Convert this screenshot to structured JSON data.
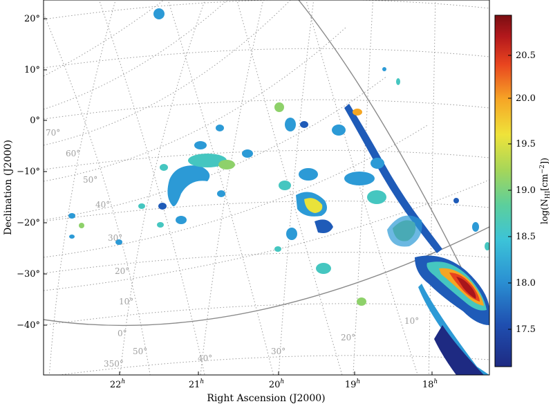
{
  "chart_data": {
    "type": "heatmap",
    "title": "",
    "xlabel": "Right Ascension (J2000)",
    "ylabel": "Declination (J2000)",
    "x_ticks": [
      "22",
      "21",
      "20",
      "19",
      "18"
    ],
    "x_tick_unit": "h",
    "y_ticks": [
      "20°",
      "10°",
      "0°",
      "−10°",
      "−20°",
      "−30°",
      "−40°"
    ],
    "ylim": [
      -50,
      23
    ],
    "grid": true,
    "grid_style": "dotted",
    "galactic_longitude_labels": [
      "350°",
      "0°",
      "10°",
      "20°",
      "30°",
      "40°",
      "50°",
      "60°",
      "70°"
    ],
    "galactic_latitude_labels": [
      "50°",
      "40°",
      "30°",
      "20°",
      "10°"
    ],
    "colorbar": {
      "label_prefix": "log(N",
      "label_sub": "HI",
      "label_unit": "[cm",
      "label_sup": "−2",
      "label_suffix": "])",
      "ticks": [
        "20.5",
        "20.0",
        "19.5",
        "19.0",
        "18.5",
        "18.0",
        "17.5"
      ],
      "range": [
        17.15,
        20.9
      ],
      "colormap": "jet"
    },
    "colors": {
      "line": "#8a8a8a",
      "grid": "#9a9a9a",
      "cmap": [
        "#1e2a82",
        "#1f5bb8",
        "#2c9ad6",
        "#45c6c0",
        "#8ed16a",
        "#e9e23a",
        "#f5a623",
        "#e8431e",
        "#a8161b",
        "#7a0e12"
      ]
    }
  }
}
